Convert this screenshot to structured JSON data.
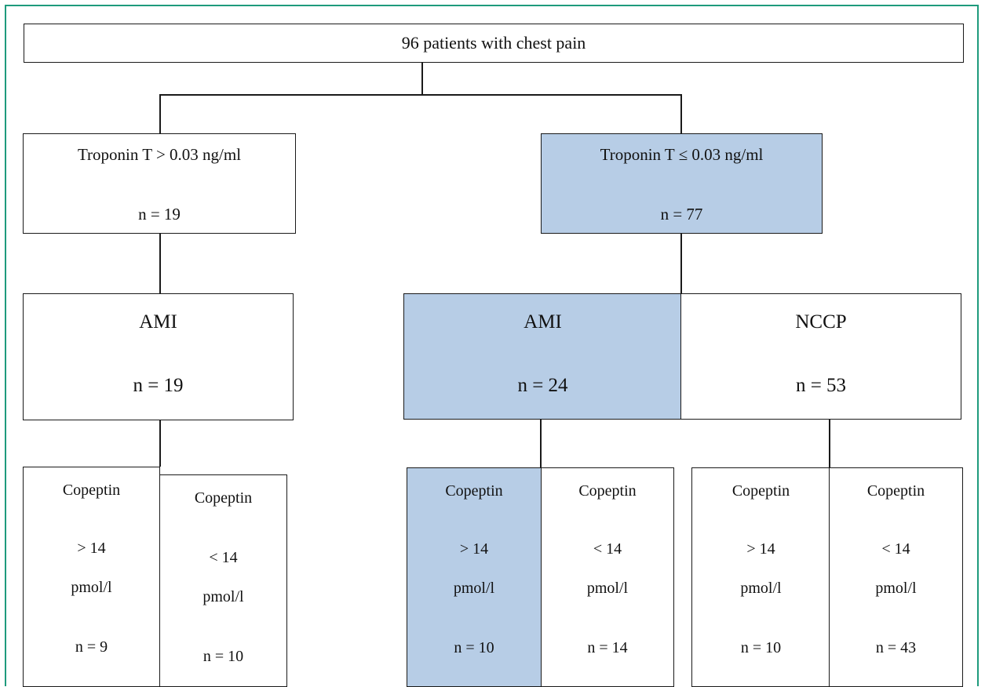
{
  "root": {
    "label": "96 patients with chest pain"
  },
  "left_branch": {
    "header": {
      "title": "Troponin T > 0.03 ng/ml",
      "n": "n = 19"
    },
    "dx": {
      "title": "AMI",
      "n": "n = 19"
    },
    "copeptin": [
      {
        "label": "Copeptin",
        "threshold": "> 14",
        "unit": "pmol/l",
        "n": "n = 9"
      },
      {
        "label": "Copeptin",
        "threshold": "< 14",
        "unit": "pmol/l",
        "n": "n = 10"
      }
    ]
  },
  "right_branch": {
    "header": {
      "title": "Troponin T ≤ 0.03 ng/ml",
      "n": "n = 77"
    },
    "dx_ami": {
      "title": "AMI",
      "n": "n = 24"
    },
    "dx_nccp": {
      "title": "NCCP",
      "n": "n = 53"
    },
    "ami_copeptin": [
      {
        "label": "Copeptin",
        "threshold": "> 14",
        "unit": "pmol/l",
        "n": "n = 10"
      },
      {
        "label": "Copeptin",
        "threshold": "< 14",
        "unit": "pmol/l",
        "n": "n = 14"
      }
    ],
    "nccp_copeptin": [
      {
        "label": "Copeptin",
        "threshold": "> 14",
        "unit": "pmol/l",
        "n": "n = 10"
      },
      {
        "label": "Copeptin",
        "threshold": "< 14",
        "unit": "pmol/l",
        "n": "n = 43"
      }
    ]
  },
  "colors": {
    "highlight": "#b7cde6",
    "frame": "#1e9a7c",
    "line": "#1a1a1a"
  }
}
